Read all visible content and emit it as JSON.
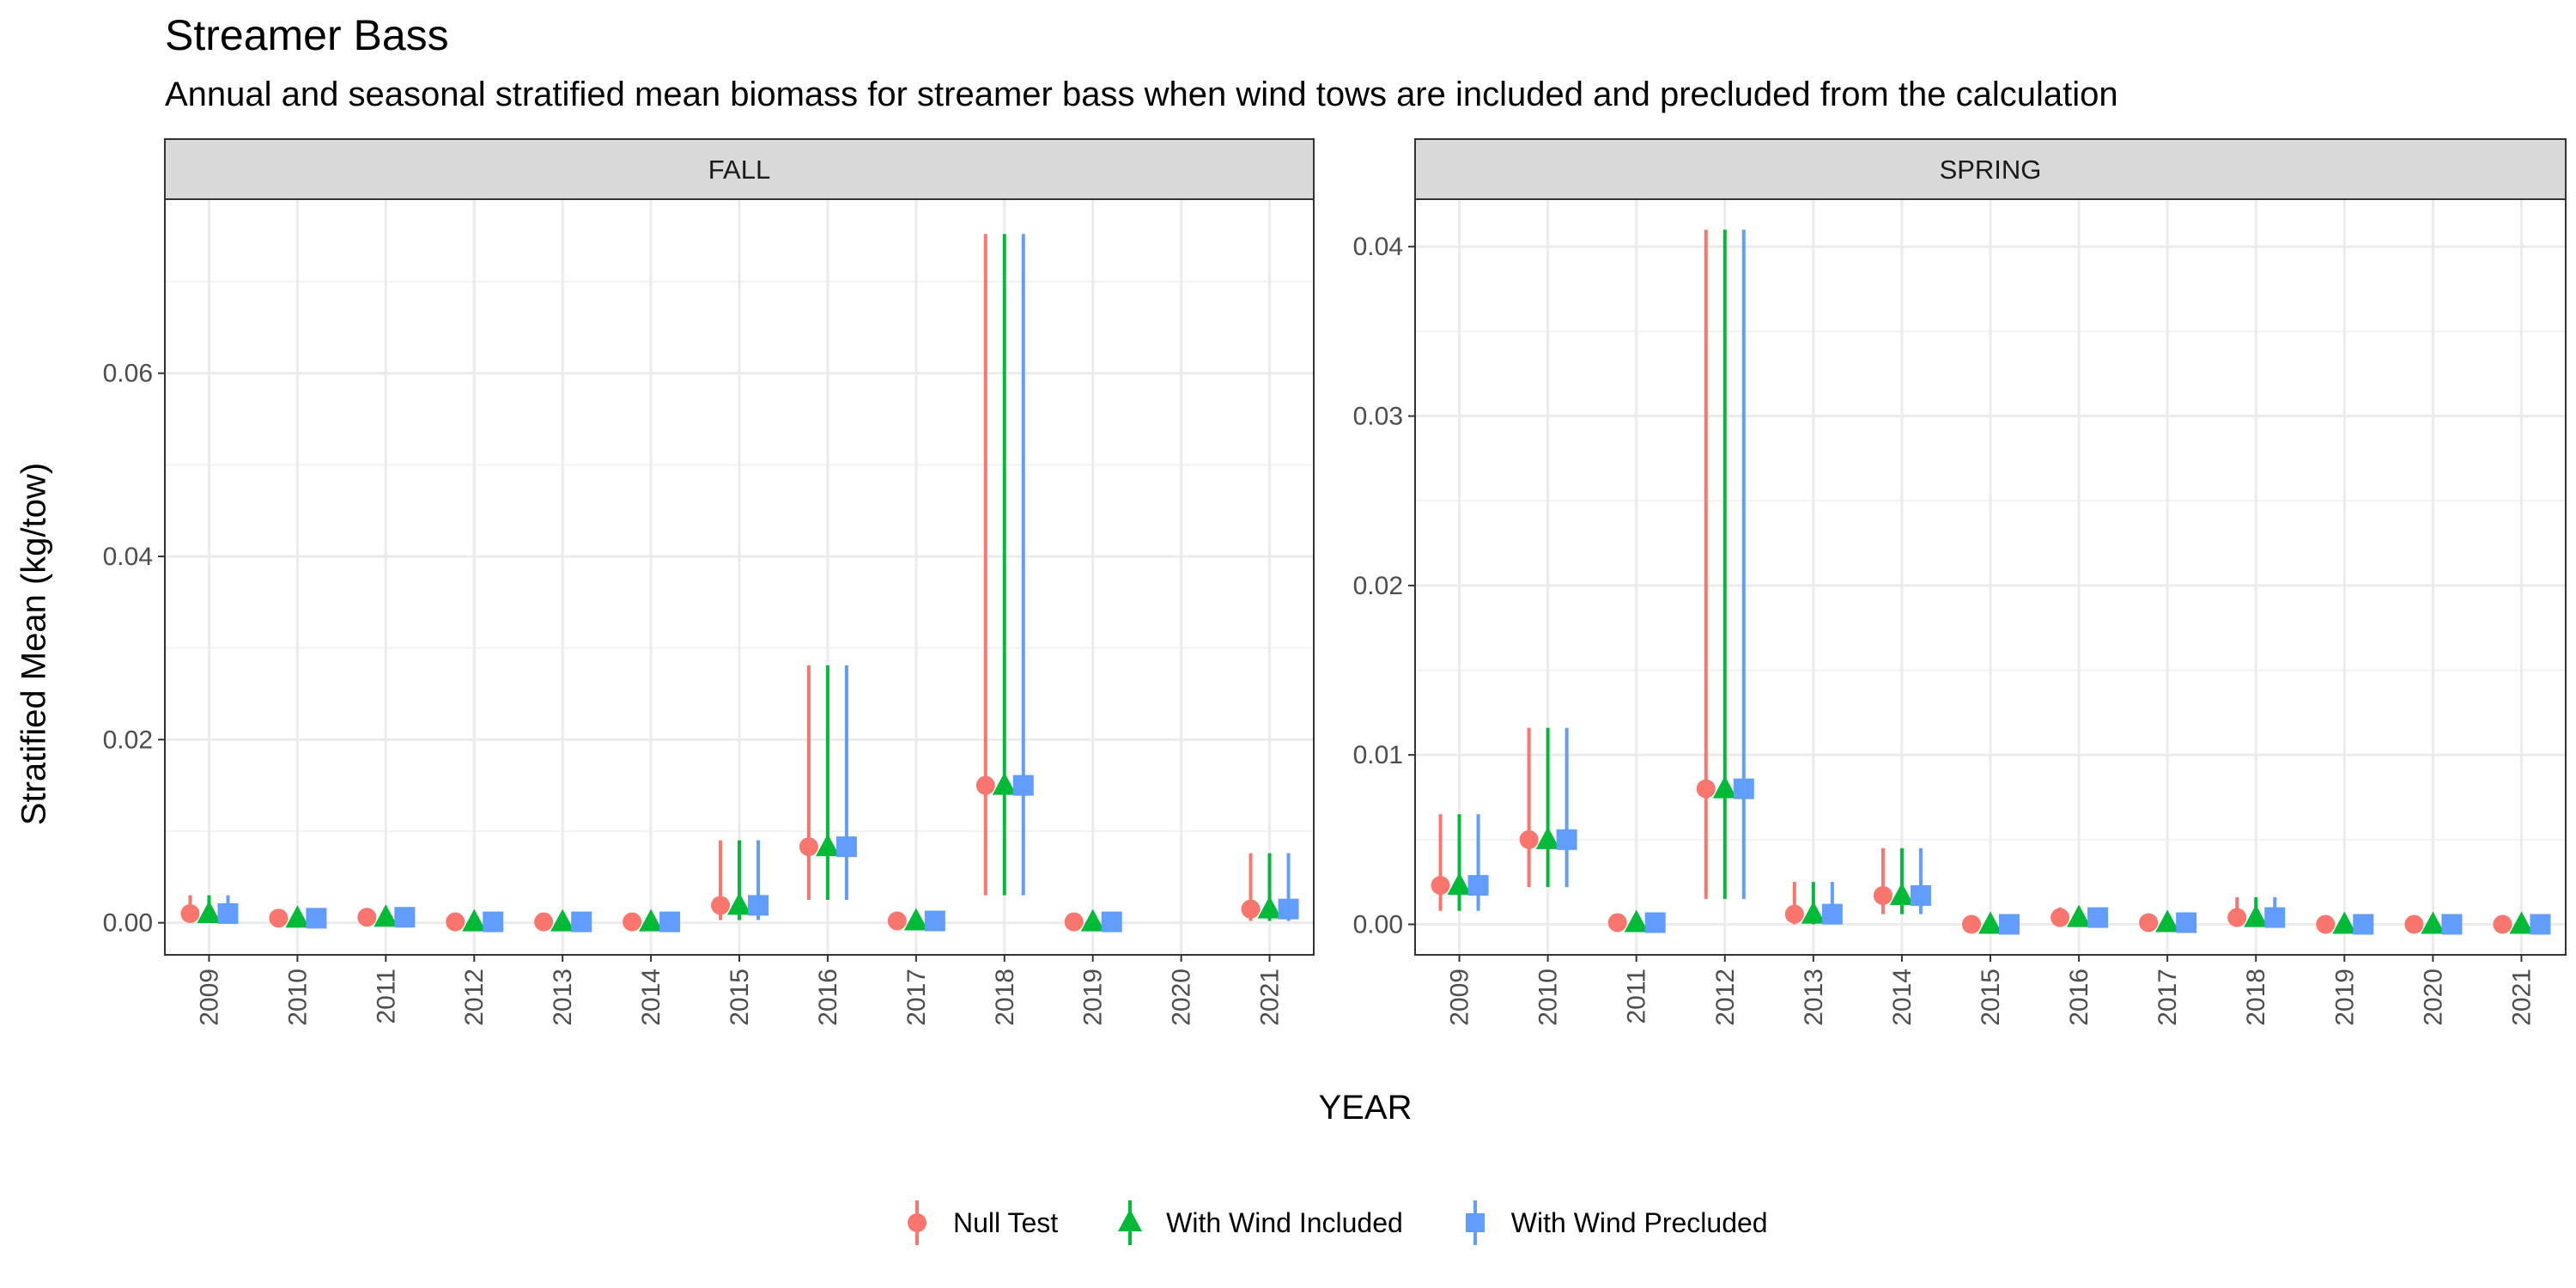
{
  "chart_data": {
    "type": "scatter",
    "title": "Streamer Bass",
    "subtitle": "Annual and seasonal stratified mean biomass for streamer bass when wind tows are included and precluded from the calculation",
    "xlabel": "YEAR",
    "ylabel": "Stratified Mean (kg/tow)",
    "years": [
      "2009",
      "2010",
      "2011",
      "2012",
      "2013",
      "2014",
      "2015",
      "2016",
      "2017",
      "2018",
      "2019",
      "2020",
      "2021"
    ],
    "legend_position": "bottom",
    "grid": true,
    "series": [
      {
        "name": "Null Test",
        "color": "#F8766D",
        "shape": "circle"
      },
      {
        "name": "With Wind Included",
        "color": "#00BA38",
        "shape": "triangle"
      },
      {
        "name": "With Wind Precluded",
        "color": "#619CFF",
        "shape": "square"
      }
    ],
    "panels": [
      {
        "label": "FALL",
        "ylim": [
          -0.0035,
          0.079
        ],
        "yticks": [
          0.0,
          0.02,
          0.04,
          0.06
        ],
        "ytick_labels": [
          "0.00",
          "0.02",
          "0.04",
          "0.06"
        ],
        "values": [
          {
            "year": "2009",
            "mean": 0.001,
            "lo": 0.0,
            "hi": 0.003
          },
          {
            "year": "2010",
            "mean": 0.0005,
            "lo": 0.0,
            "hi": 0.001
          },
          {
            "year": "2011",
            "mean": 0.0006,
            "lo": 0.0,
            "hi": 0.0013
          },
          {
            "year": "2012",
            "mean": 0.0001,
            "lo": 0.0,
            "hi": 0.0002
          },
          {
            "year": "2013",
            "mean": 0.0001,
            "lo": 0.0,
            "hi": 0.0002
          },
          {
            "year": "2014",
            "mean": 0.0001,
            "lo": 0.0,
            "hi": 0.0002
          },
          {
            "year": "2015",
            "mean": 0.0019,
            "lo": 0.0003,
            "hi": 0.009
          },
          {
            "year": "2016",
            "mean": 0.0083,
            "lo": 0.0025,
            "hi": 0.0281
          },
          {
            "year": "2017",
            "mean": 0.0002,
            "lo": 0.0,
            "hi": 0.0004
          },
          {
            "year": "2018",
            "mean": 0.015,
            "lo": 0.003,
            "hi": 0.0752
          },
          {
            "year": "2019",
            "mean": 0.0001,
            "lo": 0.0,
            "hi": 0.0002
          },
          {
            "year": "2021",
            "mean": 0.0015,
            "lo": 0.0002,
            "hi": 0.0076
          }
        ]
      },
      {
        "label": "SPRING",
        "ylim": [
          -0.0018,
          0.0428
        ],
        "yticks": [
          0.0,
          0.01,
          0.02,
          0.03,
          0.04
        ],
        "ytick_labels": [
          "0.00",
          "0.01",
          "0.02",
          "0.03",
          "0.04"
        ],
        "values": [
          {
            "year": "2009",
            "mean": 0.0023,
            "lo": 0.0008,
            "hi": 0.0065
          },
          {
            "year": "2010",
            "mean": 0.005,
            "lo": 0.0022,
            "hi": 0.0116
          },
          {
            "year": "2011",
            "mean": 0.0001,
            "lo": 0.0,
            "hi": 0.0003
          },
          {
            "year": "2012",
            "mean": 0.008,
            "lo": 0.0015,
            "hi": 0.041
          },
          {
            "year": "2013",
            "mean": 0.0006,
            "lo": 0.0,
            "hi": 0.0025
          },
          {
            "year": "2014",
            "mean": 0.0017,
            "lo": 0.0006,
            "hi": 0.0045
          },
          {
            "year": "2015",
            "mean": 0.0,
            "lo": 0.0,
            "hi": 0.0001
          },
          {
            "year": "2016",
            "mean": 0.0004,
            "lo": 0.0,
            "hi": 0.001
          },
          {
            "year": "2017",
            "mean": 0.0001,
            "lo": 0.0,
            "hi": 0.0002
          },
          {
            "year": "2018",
            "mean": 0.0004,
            "lo": 0.0,
            "hi": 0.0016
          },
          {
            "year": "2019",
            "mean": 0.0,
            "lo": 0.0,
            "hi": 0.0001
          },
          {
            "year": "2020",
            "mean": 0.0,
            "lo": 0.0,
            "hi": 0.0001
          },
          {
            "year": "2021",
            "mean": 0.0,
            "lo": 0.0,
            "hi": 0.0001
          }
        ]
      }
    ]
  }
}
